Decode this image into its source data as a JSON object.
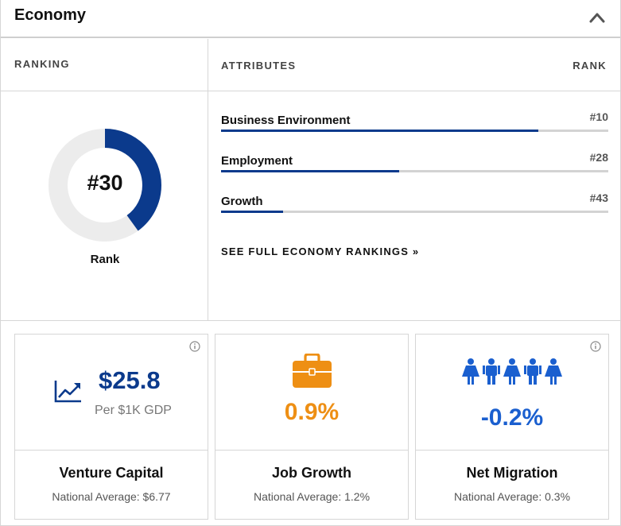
{
  "header": {
    "title": "Economy"
  },
  "ranking": {
    "label": "RANKING",
    "value": "#30",
    "caption": "Rank",
    "fill_fraction": 0.4,
    "fill_color": "#0b3a8c",
    "track_color": "#ececec"
  },
  "attributes": {
    "label": "ATTRIBUTES",
    "rank_label": "RANK",
    "items": [
      {
        "name": "Business Environment",
        "rank": "#10",
        "fill_fraction": 0.82
      },
      {
        "name": "Employment",
        "rank": "#28",
        "fill_fraction": 0.46
      },
      {
        "name": "Growth",
        "rank": "#43",
        "fill_fraction": 0.16
      }
    ],
    "link": "SEE FULL ECONOMY RANKINGS »"
  },
  "cards": [
    {
      "value": "$25.8",
      "sub": "Per $1K GDP",
      "title": "Venture Capital",
      "avg": "National Average: $6.77",
      "color": "#0b3a8c",
      "icon": "trend-up-icon"
    },
    {
      "value": "0.9%",
      "title": "Job Growth",
      "avg": "National Average: 1.2%",
      "color": "#ee8f14",
      "icon": "briefcase-icon"
    },
    {
      "value": "-0.2%",
      "title": "Net Migration",
      "avg": "National Average: 0.3%",
      "color": "#1a5fcf",
      "icon": "people-icon"
    }
  ]
}
